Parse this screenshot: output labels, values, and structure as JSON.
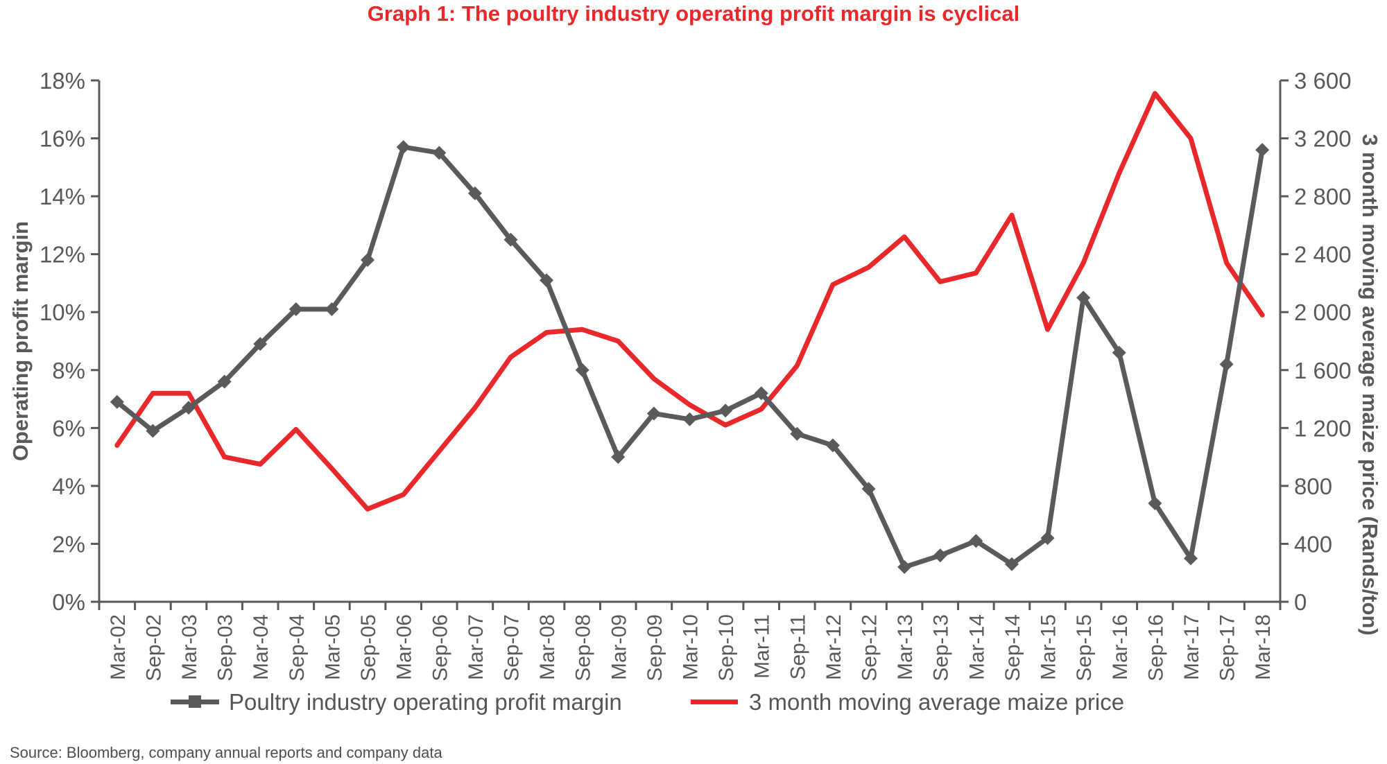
{
  "title": "Graph 1: The poultry industry operating profit margin is cyclical",
  "source": "Source: Bloomberg, company annual reports and company data",
  "colors": {
    "title": "#e8282b",
    "margin_series": "#5a5a5a",
    "maize_series": "#e8282b",
    "axis": "#595959"
  },
  "chart_data": {
    "type": "line",
    "grid": false,
    "legend_position": "bottom",
    "y_left_label": "Operating profit margin",
    "y_right_label": "3 month moving average maize price (Rands/ton)",
    "y_left_range": [
      0,
      18
    ],
    "y_right_range": [
      0,
      3600
    ],
    "y_left_ticks": [
      "0%",
      "2%",
      "4%",
      "6%",
      "8%",
      "10%",
      "12%",
      "14%",
      "16%",
      "18%"
    ],
    "y_right_ticks": [
      "0",
      "400",
      "800",
      "1 200",
      "1 600",
      "2 000",
      "2 400",
      "2 800",
      "3 200",
      "3 600"
    ],
    "categories": [
      "Mar-02",
      "Sep-02",
      "Mar-03",
      "Sep-03",
      "Mar-04",
      "Sep-04",
      "Mar-05",
      "Sep-05",
      "Mar-06",
      "Sep-06",
      "Mar-07",
      "Sep-07",
      "Mar-08",
      "Sep-08",
      "Mar-09",
      "Sep-09",
      "Mar-10",
      "Sep-10",
      "Mar-11",
      "Sep-11",
      "Mar-12",
      "Sep-12",
      "Mar-13",
      "Sep-13",
      "Mar-14",
      "Sep-14",
      "Mar-15",
      "Sep-15",
      "Mar-16",
      "Sep-16",
      "Mar-17",
      "Sep-17",
      "Mar-18"
    ],
    "series": [
      {
        "name": "Poultry industry operating profit margin",
        "axis": "left",
        "marker": "diamond",
        "unit": "%",
        "values": [
          6.9,
          5.9,
          6.7,
          7.6,
          8.9,
          10.1,
          10.1,
          11.8,
          15.7,
          15.5,
          14.1,
          12.5,
          11.1,
          8.0,
          5.0,
          6.5,
          6.3,
          6.6,
          7.2,
          5.8,
          5.4,
          3.9,
          1.2,
          1.6,
          2.1,
          1.3,
          2.2,
          10.5,
          8.6,
          3.4,
          1.5,
          8.2,
          15.6
        ]
      },
      {
        "name": "3 month moving average maize price",
        "axis": "right",
        "marker": "none",
        "unit": "Rands/ton",
        "values": [
          1080,
          1440,
          1440,
          1000,
          950,
          1190,
          920,
          640,
          740,
          1040,
          1340,
          1690,
          1860,
          1880,
          1800,
          1540,
          1360,
          1220,
          1330,
          1630,
          2190,
          2310,
          2520,
          2210,
          2270,
          2670,
          1880,
          2340,
          2960,
          3510,
          3200,
          2340,
          1980
        ]
      }
    ]
  }
}
